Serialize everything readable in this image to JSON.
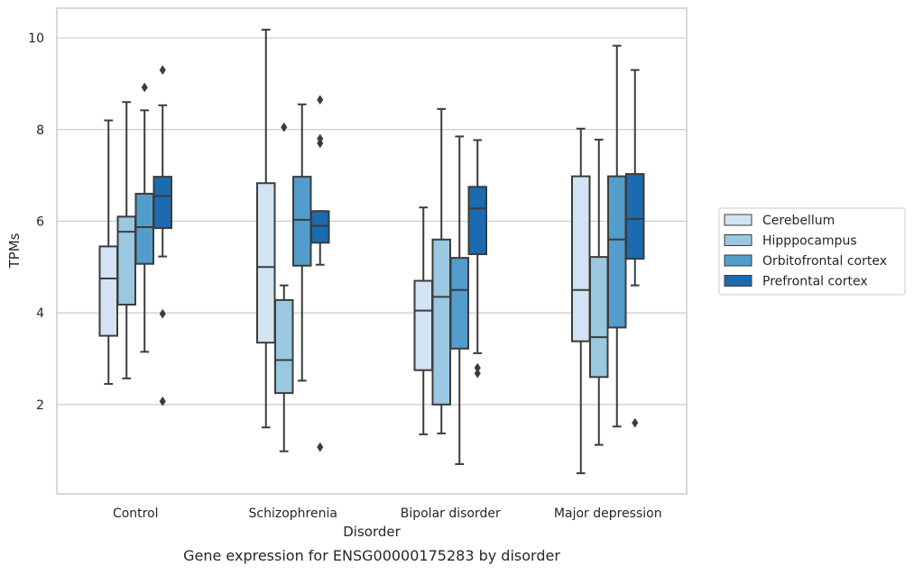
{
  "chart_data": {
    "type": "box",
    "caption": "Gene expression for ENSG00000175283 by disorder",
    "xlabel": "Disorder",
    "ylabel": "TPMs",
    "ylim": [
      0.05,
      10.65
    ],
    "yticks": [
      2,
      4,
      6,
      8,
      10
    ],
    "grid": "horizontal",
    "legend_placement": "right",
    "categories": [
      "Control",
      "Schizophrenia",
      "Bipolar disorder",
      "Major depression"
    ],
    "series": [
      {
        "name": "Cerebellum",
        "color": "#d2e3f3",
        "boxes": [
          {
            "whislo": 2.45,
            "q1": 3.5,
            "med": 4.75,
            "q3": 5.45,
            "whishi": 8.2,
            "fliers": []
          },
          {
            "whislo": 1.5,
            "q1": 3.35,
            "med": 5.0,
            "q3": 6.83,
            "whishi": 10.18,
            "fliers": []
          },
          {
            "whislo": 1.35,
            "q1": 2.75,
            "med": 4.05,
            "q3": 4.7,
            "whishi": 6.3,
            "fliers": []
          },
          {
            "whislo": 0.5,
            "q1": 3.38,
            "med": 4.5,
            "q3": 6.98,
            "whishi": 8.02,
            "fliers": []
          }
        ]
      },
      {
        "name": "Hipppocampus",
        "color": "#9ac8e0",
        "boxes": [
          {
            "whislo": 2.57,
            "q1": 4.18,
            "med": 5.77,
            "q3": 6.1,
            "whishi": 8.6,
            "fliers": []
          },
          {
            "whislo": 0.98,
            "q1": 2.25,
            "med": 2.97,
            "q3": 4.28,
            "whishi": 4.6,
            "fliers": [
              8.05
            ]
          },
          {
            "whislo": 1.37,
            "q1": 2.0,
            "med": 4.35,
            "q3": 5.6,
            "whishi": 8.45,
            "fliers": []
          },
          {
            "whislo": 1.12,
            "q1": 2.6,
            "med": 3.47,
            "q3": 5.22,
            "whishi": 7.78,
            "fliers": []
          }
        ]
      },
      {
        "name": "Orbitofrontal cortex",
        "color": "#529dcc",
        "boxes": [
          {
            "whislo": 3.15,
            "q1": 5.07,
            "med": 5.87,
            "q3": 6.6,
            "whishi": 8.42,
            "fliers": [
              8.92
            ]
          },
          {
            "whislo": 2.52,
            "q1": 5.03,
            "med": 6.03,
            "q3": 6.97,
            "whishi": 8.55,
            "fliers": []
          },
          {
            "whislo": 0.7,
            "q1": 3.22,
            "med": 4.5,
            "q3": 5.2,
            "whishi": 7.85,
            "fliers": []
          },
          {
            "whislo": 1.52,
            "q1": 3.68,
            "med": 5.6,
            "q3": 6.98,
            "whishi": 9.83,
            "fliers": []
          }
        ]
      },
      {
        "name": "Prefrontal cortex",
        "color": "#1c6aaf",
        "boxes": [
          {
            "whislo": 5.23,
            "q1": 5.85,
            "med": 6.55,
            "q3": 6.97,
            "whishi": 8.53,
            "fliers": [
              9.3,
              3.98,
              2.07
            ]
          },
          {
            "whislo": 5.05,
            "q1": 5.53,
            "med": 5.9,
            "q3": 6.22,
            "whishi": 6.22,
            "fliers": [
              8.65,
              7.8,
              7.7,
              1.07
            ]
          },
          {
            "whislo": 3.12,
            "q1": 5.28,
            "med": 6.28,
            "q3": 6.75,
            "whishi": 7.77,
            "fliers": [
              2.8,
              2.68
            ]
          },
          {
            "whislo": 4.6,
            "q1": 5.18,
            "med": 6.05,
            "q3": 7.03,
            "whishi": 9.3,
            "fliers": [
              1.6
            ]
          }
        ]
      }
    ]
  }
}
